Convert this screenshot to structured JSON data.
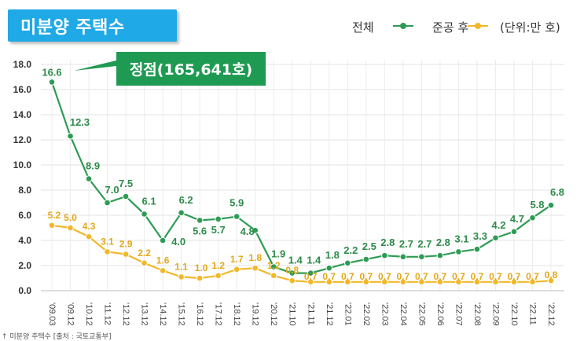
{
  "header": {
    "title": "미분양 주택수"
  },
  "legend": {
    "total": "전체",
    "completed": "준공 후",
    "unit": "(단위:만 호)"
  },
  "callout": {
    "text": "정점(165,641호)"
  },
  "source": "↑ 미분양 주택수 [출처 : 국토교통부]",
  "colors": {
    "total": "#2e9b55",
    "completed": "#f2b829",
    "title_bg": "#1fa9e6",
    "callout_bg": "#1f9a52"
  },
  "chart_data": {
    "type": "line",
    "x": [
      "'09.03",
      "'09.12",
      "'10.12",
      "'11.12",
      "'12.12",
      "'13.12",
      "'14.12",
      "'15.12",
      "'16.12",
      "'17.12",
      "'18.12",
      "'19.12",
      "'20.12",
      "'21.10",
      "'21.11",
      "'21.12",
      "'22.01",
      "'22.02",
      "'22.03",
      "'22.04",
      "'22.05",
      "'22.06",
      "'22.07",
      "'22.08",
      "'22.09",
      "'22.10",
      "'22.11",
      "'22.12"
    ],
    "series": [
      {
        "name": "전체",
        "values": [
          16.6,
          12.3,
          8.9,
          7.0,
          7.5,
          6.1,
          4.0,
          6.2,
          5.6,
          5.7,
          5.9,
          4.8,
          1.9,
          1.4,
          1.4,
          1.8,
          2.2,
          2.5,
          2.8,
          2.7,
          2.7,
          2.8,
          3.1,
          3.3,
          4.2,
          4.7,
          5.8,
          6.8
        ]
      },
      {
        "name": "준공 후",
        "values": [
          5.2,
          5.0,
          4.3,
          3.1,
          2.9,
          2.2,
          1.6,
          1.1,
          1.0,
          1.2,
          1.7,
          1.8,
          1.2,
          0.8,
          0.7,
          0.7,
          0.7,
          0.7,
          0.7,
          0.7,
          0.7,
          0.7,
          0.7,
          0.7,
          0.7,
          0.7,
          0.7,
          0.8
        ]
      }
    ],
    "yticks": [
      "0.0",
      "2.0",
      "4.0",
      "6.0",
      "8.0",
      "10.0",
      "12.0",
      "14.0",
      "16.0",
      "18.0"
    ],
    "ylim": [
      0,
      18
    ],
    "grid": true
  }
}
